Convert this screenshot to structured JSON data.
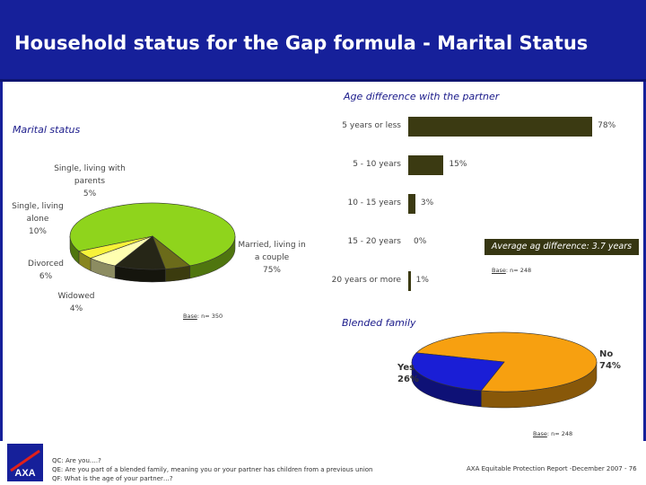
{
  "header": {
    "title": "Household status for the Gap formula - Marital Status"
  },
  "colors": {
    "header_bg": "#16209a",
    "bar": "#3b3a12",
    "pie_green": "#8fd41c",
    "pie_orange": "#f7a010",
    "pie_blue": "#1a1ed6"
  },
  "chart_data": [
    {
      "type": "pie",
      "title": "Marital status",
      "slices": [
        {
          "label": "Married, living in a couple",
          "value": 75,
          "value_label": "75%"
        },
        {
          "label": "Single, living with parents",
          "value": 5,
          "value_label": "5%"
        },
        {
          "label": "Single, living alone",
          "value": 10,
          "value_label": "10%"
        },
        {
          "label": "Divorced",
          "value": 6,
          "value_label": "6%"
        },
        {
          "label": "Widowed",
          "value": 4,
          "value_label": "4%"
        }
      ],
      "base": {
        "word": "Base",
        "text": ": n= 350"
      }
    },
    {
      "type": "bar",
      "title": "Age difference with the partner",
      "categories": [
        "5 years or less",
        "5 - 10 years",
        "10 - 15 years",
        "15 - 20 years",
        "20 years or more"
      ],
      "values": [
        78,
        15,
        3,
        0,
        1
      ],
      "value_labels": [
        "78%",
        "15%",
        "3%",
        "0%",
        "1%"
      ],
      "callout": "Average ag difference: 3.7 years",
      "base": {
        "word": "Base",
        "text": ": n= 248"
      }
    },
    {
      "type": "pie",
      "title": "Blended family",
      "slices": [
        {
          "label": "No",
          "value": 74,
          "value_label": "74%"
        },
        {
          "label": "Yes",
          "value": 26,
          "value_label": "26%"
        }
      ],
      "base": {
        "word": "Base",
        "text": ": n= 248"
      }
    }
  ],
  "footer": {
    "questions": [
      "QC: Are you….?",
      "QE: Are you part of a blended family, meaning you or your partner has children from a previous union",
      "QF: What is the age of your partner…?"
    ],
    "report": "AXA Equitable Protection Report -December 2007 - 76",
    "logo_text": "AXA"
  }
}
